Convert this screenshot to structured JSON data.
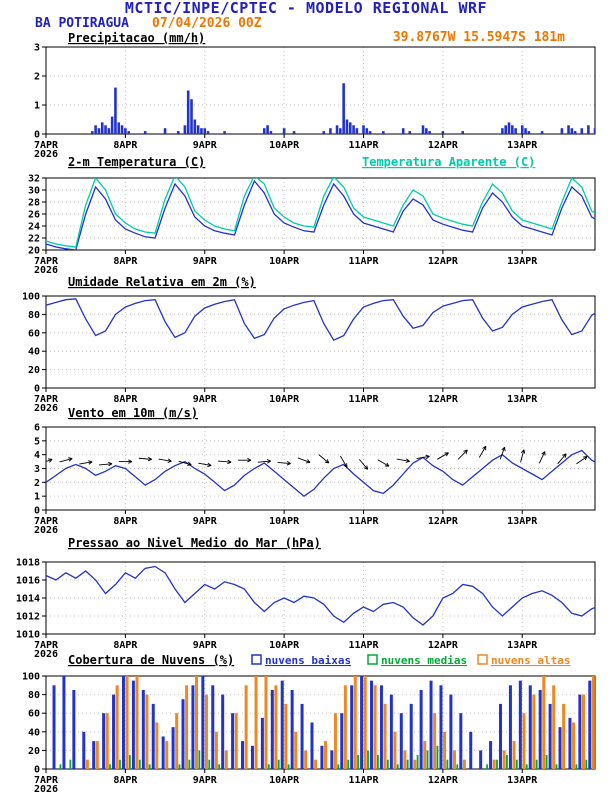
{
  "header": {
    "line1": "MCTIC/INPE/CPTEC - MODELO REGIONAL WRF",
    "station": "BA POTIRAGUA",
    "run": "07/04/2026 00Z",
    "coords": "39.8767W 15.5947S 181m"
  },
  "colors": {
    "header_blue": "#2222bb",
    "accent_orange": "#ee7700",
    "line_blue": "#2233cc",
    "apparent_cyan": "#00ccaa",
    "clouds_green": "#00aa33",
    "clouds_orange": "#ee8822"
  },
  "x_axis": {
    "hours_max": 166,
    "day_hours": [
      0,
      24,
      48,
      72,
      96,
      120,
      144
    ],
    "day_labels": [
      "7APR",
      "8APR",
      "9APR",
      "10APR",
      "11APR",
      "12APR",
      "13APR"
    ],
    "year_label": "2026"
  },
  "chart_data": [
    {
      "type": "bar",
      "name": "precipitacao",
      "title": "Precipitacao (mm/h)",
      "ylim": [
        0,
        3
      ],
      "yticks": [
        0,
        1,
        2,
        3
      ],
      "color": "#2233cc",
      "bars": [
        [
          14,
          0.1
        ],
        [
          15,
          0.3
        ],
        [
          16,
          0.2
        ],
        [
          17,
          0.4
        ],
        [
          18,
          0.3
        ],
        [
          19,
          0.2
        ],
        [
          20,
          0.6
        ],
        [
          21,
          1.6
        ],
        [
          22,
          0.4
        ],
        [
          23,
          0.3
        ],
        [
          24,
          0.2
        ],
        [
          25,
          0.1
        ],
        [
          30,
          0.1
        ],
        [
          36,
          0.2
        ],
        [
          40,
          0.1
        ],
        [
          42,
          0.3
        ],
        [
          43,
          1.5
        ],
        [
          44,
          1.2
        ],
        [
          45,
          0.5
        ],
        [
          46,
          0.3
        ],
        [
          47,
          0.2
        ],
        [
          48,
          0.2
        ],
        [
          49,
          0.1
        ],
        [
          54,
          0.1
        ],
        [
          66,
          0.2
        ],
        [
          67,
          0.3
        ],
        [
          68,
          0.1
        ],
        [
          72,
          0.2
        ],
        [
          75,
          0.1
        ],
        [
          84,
          0.1
        ],
        [
          86,
          0.2
        ],
        [
          88,
          0.3
        ],
        [
          89,
          0.2
        ],
        [
          90,
          1.75
        ],
        [
          91,
          0.5
        ],
        [
          92,
          0.4
        ],
        [
          93,
          0.3
        ],
        [
          94,
          0.2
        ],
        [
          96,
          0.3
        ],
        [
          97,
          0.2
        ],
        [
          98,
          0.1
        ],
        [
          102,
          0.1
        ],
        [
          108,
          0.2
        ],
        [
          110,
          0.1
        ],
        [
          114,
          0.3
        ],
        [
          115,
          0.2
        ],
        [
          116,
          0.1
        ],
        [
          120,
          0.1
        ],
        [
          126,
          0.1
        ],
        [
          138,
          0.2
        ],
        [
          139,
          0.3
        ],
        [
          140,
          0.4
        ],
        [
          141,
          0.3
        ],
        [
          142,
          0.2
        ],
        [
          144,
          0.3
        ],
        [
          145,
          0.2
        ],
        [
          146,
          0.1
        ],
        [
          150,
          0.1
        ],
        [
          156,
          0.2
        ],
        [
          158,
          0.3
        ],
        [
          159,
          0.2
        ],
        [
          160,
          0.1
        ],
        [
          162,
          0.2
        ],
        [
          164,
          0.3
        ],
        [
          166,
          0.2
        ]
      ]
    },
    {
      "type": "line",
      "name": "temperatura-2m",
      "title": "2-m Temperatura (C)",
      "title2": "Temperatura Aparente (C)",
      "ylim": [
        20,
        32
      ],
      "yticks": [
        20,
        22,
        24,
        26,
        28,
        30,
        32
      ],
      "step_hours": 3,
      "series": [
        {
          "name": "2-m Temperatura (C)",
          "color": "#2233cc",
          "values": [
            21,
            20.5,
            20.2,
            20,
            26,
            30.5,
            28.5,
            25,
            23.5,
            22.8,
            22.2,
            22,
            27,
            31,
            29,
            25.5,
            24,
            23.2,
            22.8,
            22.5,
            27.5,
            31.5,
            29.5,
            26,
            24.5,
            23.8,
            23.2,
            23,
            27.5,
            31,
            29,
            26,
            24.5,
            24,
            23.5,
            23,
            26.5,
            28.5,
            27.5,
            25,
            24.3,
            23.8,
            23.3,
            23,
            27,
            29.5,
            28,
            25.5,
            24,
            23.5,
            23,
            22.5,
            27,
            30.5,
            29,
            25.5,
            24.5
          ]
        },
        {
          "name": "Temperatura Aparente (C)",
          "color": "#00ccaa",
          "values": [
            21.5,
            21,
            20.7,
            20.5,
            27.5,
            32,
            30,
            26,
            24.5,
            23.5,
            23,
            22.8,
            28.5,
            32.4,
            30.5,
            26.5,
            25,
            24,
            23.5,
            23.2,
            29,
            32.4,
            31,
            27,
            25.5,
            24.5,
            24,
            23.8,
            29,
            32.2,
            30.5,
            27,
            25.5,
            25,
            24.5,
            24,
            27.5,
            30,
            29,
            26,
            25.3,
            24.8,
            24.3,
            24,
            28,
            31,
            29.5,
            26.5,
            25,
            24.5,
            24,
            23.5,
            28,
            32,
            30.5,
            26.5,
            25.5
          ]
        }
      ]
    },
    {
      "type": "line",
      "name": "umidade-relativa-2m",
      "title": "Umidade Relativa em 2m (%)",
      "ylim": [
        0,
        100
      ],
      "yticks": [
        0,
        20,
        40,
        60,
        80,
        100
      ],
      "step_hours": 3,
      "series": [
        {
          "name": "Umidade Relativa",
          "color": "#2233cc",
          "values": [
            90,
            93,
            96,
            97,
            75,
            57,
            62,
            80,
            88,
            92,
            95,
            96,
            72,
            55,
            60,
            78,
            87,
            91,
            94,
            96,
            70,
            54,
            58,
            76,
            86,
            90,
            93,
            95,
            70,
            52,
            57,
            75,
            88,
            92,
            95,
            96,
            78,
            65,
            68,
            82,
            89,
            92,
            95,
            96,
            76,
            62,
            66,
            80,
            88,
            91,
            94,
            96,
            74,
            58,
            62,
            79,
            86
          ]
        }
      ]
    },
    {
      "type": "wind",
      "name": "vento-10m",
      "title": "Vento em 10m (m/s)",
      "ylim": [
        0,
        6
      ],
      "yticks": [
        0,
        1,
        2,
        3,
        4,
        5,
        6
      ],
      "step_hours": 3,
      "series": [
        {
          "name": "Velocidade do vento",
          "color": "#2233cc",
          "values": [
            2.0,
            2.5,
            3.0,
            3.3,
            3.0,
            2.5,
            2.8,
            3.2,
            3.0,
            2.4,
            1.8,
            2.2,
            2.8,
            3.2,
            3.5,
            3.0,
            2.6,
            2.0,
            1.4,
            1.8,
            2.5,
            3.0,
            3.4,
            2.8,
            2.2,
            1.6,
            1.0,
            1.5,
            2.3,
            3.0,
            3.3,
            2.6,
            2.0,
            1.4,
            1.2,
            1.8,
            2.6,
            3.4,
            3.8,
            3.2,
            2.8,
            2.2,
            1.8,
            2.4,
            3.0,
            3.6,
            4.0,
            3.4,
            3.0,
            2.6,
            2.2,
            2.8,
            3.4,
            4.0,
            4.3,
            3.6,
            3.2
          ]
        }
      ],
      "barbs": {
        "step_hours": 6,
        "dirs_deg": [
          70,
          75,
          80,
          85,
          90,
          95,
          100,
          105,
          100,
          95,
          90,
          85,
          95,
          110,
          130,
          150,
          140,
          120,
          100,
          80,
          60,
          45,
          30,
          20,
          15,
          25,
          40,
          55,
          70
        ],
        "levels": [
          3.5,
          3.6,
          3.4,
          3.3,
          3.5,
          3.7,
          3.6,
          3.4,
          3.3,
          3.5,
          3.6,
          3.5,
          3.4,
          3.6,
          3.7,
          3.5,
          3.3,
          3.4,
          3.6,
          3.8,
          3.9,
          4.0,
          4.2,
          4.1,
          3.9,
          3.8,
          3.7,
          3.6,
          3.5
        ]
      }
    },
    {
      "type": "line",
      "name": "pressao-nivel-mar",
      "title": "Pressao ao Nivel Medio do Mar (hPa)",
      "ylim": [
        1010,
        1018
      ],
      "yticks": [
        1010,
        1012,
        1014,
        1016,
        1018
      ],
      "step_hours": 3,
      "series": [
        {
          "name": "Pressao",
          "color": "#2233cc",
          "values": [
            1016.5,
            1016.0,
            1016.8,
            1016.2,
            1017.0,
            1016.0,
            1014.5,
            1015.5,
            1016.8,
            1016.2,
            1017.3,
            1017.5,
            1016.8,
            1015.0,
            1013.5,
            1014.5,
            1015.5,
            1015.0,
            1015.8,
            1015.5,
            1015.0,
            1013.5,
            1012.5,
            1013.5,
            1014.0,
            1013.5,
            1014.2,
            1014.0,
            1013.3,
            1012.0,
            1011.3,
            1012.3,
            1013.0,
            1012.5,
            1013.3,
            1013.5,
            1013.0,
            1011.8,
            1011.0,
            1012.0,
            1014.0,
            1014.5,
            1015.5,
            1015.3,
            1014.5,
            1013.0,
            1012.0,
            1013.0,
            1014.0,
            1014.5,
            1014.8,
            1014.3,
            1013.5,
            1012.3,
            1012.0,
            1012.8,
            1013.2
          ]
        }
      ]
    },
    {
      "type": "multibar",
      "name": "cobertura-nuvens",
      "title": "Cobertura de Nuvens (%)",
      "ylim": [
        0,
        100
      ],
      "yticks": [
        0,
        20,
        40,
        60,
        80,
        100
      ],
      "step_hours": 3,
      "legend": [
        {
          "label": "nuvens baixas",
          "color": "#2233cc"
        },
        {
          "label": "nuvens medias",
          "color": "#00aa33"
        },
        {
          "label": "nuvens altas",
          "color": "#ee8822"
        }
      ],
      "series": [
        {
          "name": "nuvens baixas",
          "color": "#2233cc",
          "values": [
            95,
            90,
            100,
            85,
            40,
            30,
            60,
            80,
            100,
            95,
            85,
            70,
            35,
            45,
            75,
            90,
            100,
            90,
            80,
            60,
            30,
            25,
            55,
            85,
            95,
            85,
            70,
            50,
            25,
            20,
            60,
            90,
            100,
            95,
            90,
            80,
            60,
            70,
            85,
            95,
            90,
            80,
            60,
            40,
            20,
            30,
            70,
            90,
            95,
            90,
            85,
            70,
            45,
            55,
            80,
            95,
            90
          ]
        },
        {
          "name": "nuvens medias",
          "color": "#00aa33",
          "values": [
            0,
            5,
            10,
            0,
            0,
            0,
            5,
            10,
            15,
            10,
            5,
            0,
            0,
            5,
            10,
            20,
            10,
            5,
            0,
            0,
            0,
            0,
            5,
            10,
            5,
            0,
            0,
            0,
            0,
            5,
            10,
            15,
            20,
            15,
            10,
            5,
            10,
            15,
            20,
            25,
            10,
            5,
            0,
            0,
            5,
            10,
            15,
            10,
            5,
            10,
            15,
            5,
            0,
            5,
            10,
            15,
            10
          ]
        },
        {
          "name": "nuvens altas",
          "color": "#ee8822",
          "values": [
            0,
            0,
            0,
            0,
            10,
            30,
            60,
            90,
            100,
            100,
            80,
            50,
            30,
            60,
            90,
            100,
            80,
            40,
            20,
            60,
            90,
            100,
            100,
            90,
            70,
            40,
            20,
            10,
            30,
            60,
            90,
            100,
            100,
            90,
            70,
            40,
            20,
            10,
            30,
            60,
            40,
            20,
            10,
            0,
            0,
            10,
            20,
            30,
            60,
            80,
            100,
            90,
            70,
            50,
            80,
            100,
            90
          ]
        }
      ]
    }
  ]
}
